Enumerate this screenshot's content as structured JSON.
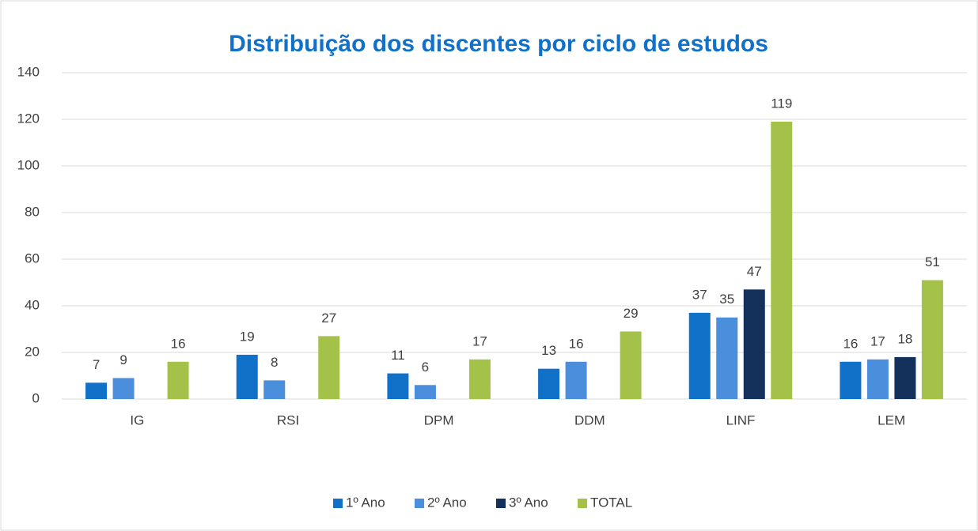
{
  "chart_data": {
    "type": "bar",
    "title": "Distribuição dos discentes por ciclo de estudos",
    "categories": [
      "IG",
      "RSI",
      "DPM",
      "DDM",
      "LINF",
      "LEM"
    ],
    "series": [
      {
        "name": "1º Ano",
        "color": "#1170c8",
        "values": [
          7,
          19,
          11,
          13,
          37,
          16
        ]
      },
      {
        "name": "2º Ano",
        "color": "#4a8edc",
        "values": [
          9,
          8,
          6,
          16,
          35,
          17
        ]
      },
      {
        "name": "3º Ano",
        "color": "#13315a",
        "values": [
          null,
          null,
          null,
          null,
          47,
          18
        ]
      },
      {
        "name": "TOTAL",
        "color": "#a4c24a",
        "values": [
          16,
          27,
          17,
          29,
          119,
          51
        ]
      }
    ],
    "ylim": [
      0,
      140
    ],
    "yticks": [
      0,
      20,
      40,
      60,
      80,
      100,
      120,
      140
    ],
    "grid": true,
    "legend": "bottom"
  }
}
